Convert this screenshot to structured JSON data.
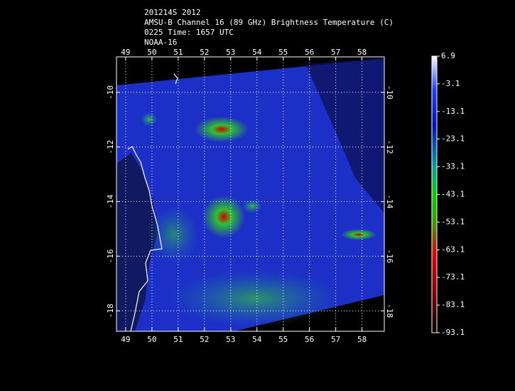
{
  "header": {
    "lines": [
      "201214S 2012",
      "AMSU-B Channel 16 (89 GHz) Brightness Temperature (C)",
      "0225 Time: 1657 UTC",
      "NOAA-16"
    ]
  },
  "map": {
    "lon_ticks": [
      49,
      50,
      51,
      52,
      53,
      54,
      55,
      56,
      57,
      58
    ],
    "lonlim": [
      48.65,
      58.85
    ],
    "lat_ticks": [
      -10,
      -12,
      -14,
      -16,
      -18
    ],
    "latlim": [
      -8.7,
      -18.75
    ]
  },
  "colorbar": {
    "ticks": [
      6.9,
      -3.1,
      -13.1,
      -23.1,
      -33.1,
      -43.1,
      -53.1,
      -63.1,
      -73.1,
      -83.1,
      -93.1
    ],
    "lim": [
      6.9,
      -93.1
    ]
  }
}
